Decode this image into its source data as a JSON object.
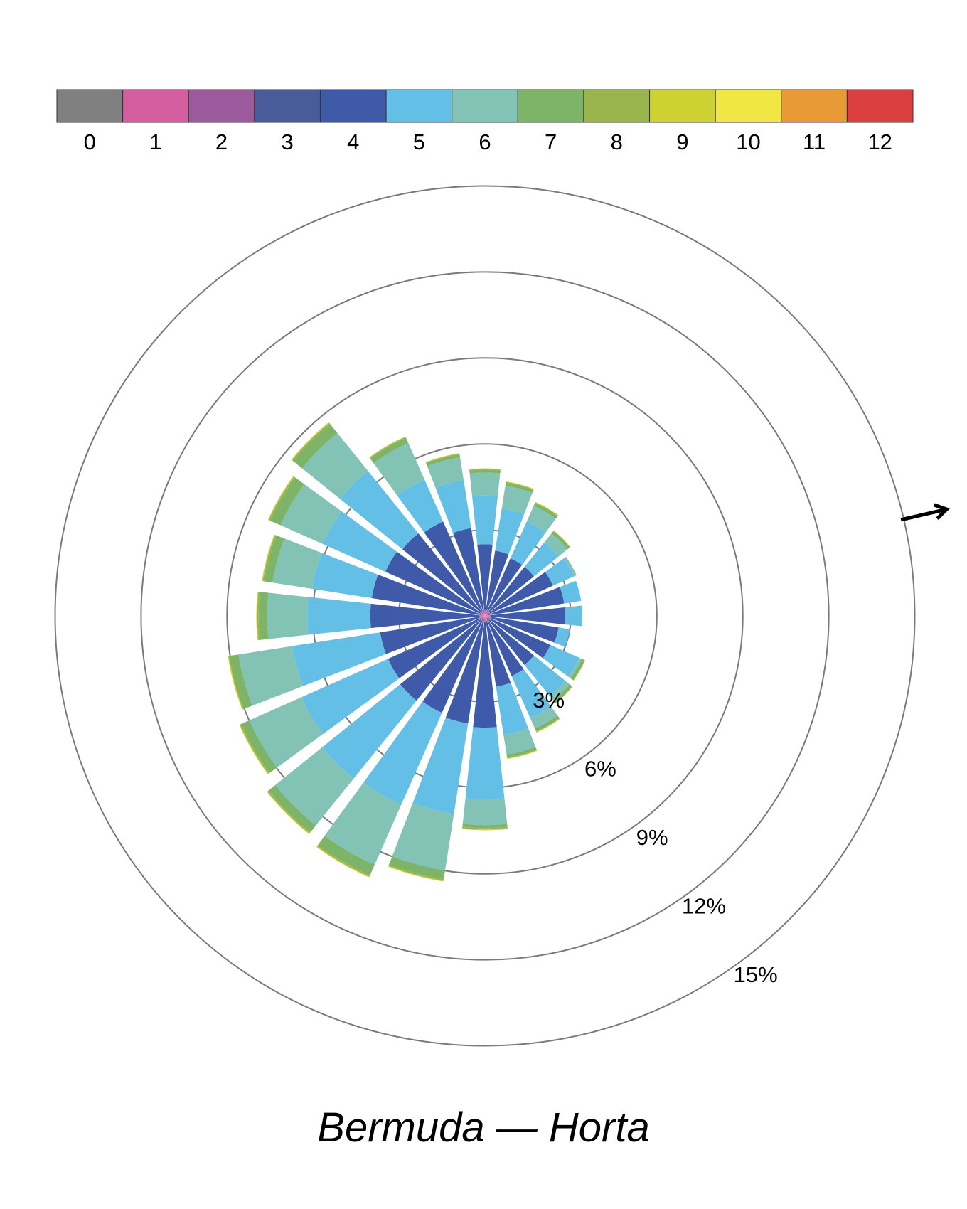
{
  "chart_data": {
    "type": "wind-rose",
    "title": "Bermuda — Horta",
    "direction_bins": 24,
    "directions_deg": [
      0,
      15,
      30,
      45,
      60,
      75,
      90,
      105,
      120,
      135,
      150,
      165,
      180,
      195,
      210,
      225,
      240,
      255,
      270,
      285,
      300,
      315,
      330,
      345
    ],
    "radial_ticks": [
      3,
      6,
      9,
      12,
      15
    ],
    "radial_tick_labels": [
      "3%",
      "6%",
      "9%",
      "12%",
      "15%"
    ],
    "colorbar": {
      "categories": [
        "0",
        "1",
        "2",
        "3",
        "4",
        "5",
        "6",
        "7",
        "8",
        "9",
        "10",
        "11",
        "12"
      ],
      "colors": [
        "#808080",
        "#d35ea0",
        "#9b5a9c",
        "#4a5b9a",
        "#3f5aa9",
        "#63bfe6",
        "#82c3b6",
        "#7eb468",
        "#9ab54e",
        "#cdd132",
        "#f0e742",
        "#e89a36",
        "#dc3f3f"
      ]
    },
    "series_colors": [
      "#d35ea0",
      "#9b5a9c",
      "#3f5aa9",
      "#63bfe6",
      "#82c3b6",
      "#7eb468",
      "#9ab54e",
      "#cdd132"
    ],
    "series": [
      {
        "name": "1",
        "values": [
          0.1,
          0.1,
          0.1,
          0.1,
          0.1,
          0.1,
          0.1,
          0.1,
          0.1,
          0.1,
          0.1,
          0.1,
          0.1,
          0.1,
          0.1,
          0.1,
          0.1,
          0.1,
          0.1,
          0.1,
          0.1,
          0.1,
          0.1,
          0.1
        ]
      },
      {
        "name": "2",
        "values": [
          0.1,
          0.1,
          0.1,
          0.1,
          0.1,
          0.1,
          0.1,
          0.1,
          0.1,
          0.1,
          0.1,
          0.1,
          0.1,
          0.1,
          0.1,
          0.1,
          0.1,
          0.1,
          0.1,
          0.1,
          0.1,
          0.1,
          0.1,
          0.1
        ]
      },
      {
        "name": "4",
        "values": [
          2.3,
          2.1,
          2.0,
          2.0,
          2.4,
          2.6,
          2.6,
          2.4,
          2.3,
          2.0,
          2.1,
          2.3,
          3.7,
          3.6,
          3.5,
          3.6,
          3.5,
          3.5,
          3.8,
          3.8,
          3.6,
          3.5,
          3.4,
          2.9
        ]
      },
      {
        "name": "5",
        "values": [
          1.7,
          1.5,
          1.4,
          1.1,
          0.8,
          0.6,
          0.6,
          0.4,
          1.1,
          1.4,
          1.6,
          1.7,
          2.5,
          3.2,
          3.5,
          3.5,
          3.3,
          3.1,
          2.2,
          2.1,
          2.4,
          2.8,
          1.6,
          1.7
        ]
      },
      {
        "name": "6",
        "values": [
          0.8,
          0.8,
          0.6,
          0.4,
          0.1,
          0.0,
          0.0,
          0.0,
          0.1,
          0.2,
          0.4,
          0.7,
          0.9,
          2.0,
          2.3,
          2.1,
          2.0,
          1.9,
          1.4,
          1.4,
          1.6,
          1.7,
          1.4,
          0.8
        ]
      },
      {
        "name": "7",
        "values": [
          0.1,
          0.1,
          0.1,
          0.1,
          0.0,
          0.0,
          0.0,
          0.0,
          0.1,
          0.1,
          0.1,
          0.1,
          0.1,
          0.3,
          0.4,
          0.3,
          0.3,
          0.3,
          0.3,
          0.3,
          0.4,
          0.4,
          0.2,
          0.1
        ]
      },
      {
        "name": "8",
        "values": [
          0.03,
          0.03,
          0.03,
          0.02,
          0,
          0,
          0,
          0,
          0.02,
          0.02,
          0.03,
          0.03,
          0.05,
          0.05,
          0.05,
          0.05,
          0.05,
          0.05,
          0.05,
          0.05,
          0.05,
          0.05,
          0.03,
          0.03
        ]
      },
      {
        "name": "9",
        "values": [
          0.02,
          0.02,
          0.02,
          0.01,
          0,
          0,
          0,
          0,
          0.01,
          0.01,
          0.02,
          0.02,
          0.03,
          0.03,
          0.03,
          0.03,
          0.03,
          0.03,
          0.03,
          0.03,
          0.03,
          0.03,
          0.02,
          0.02
        ]
      }
    ],
    "travel_arrow_bearing_deg": 77,
    "grid": true
  }
}
